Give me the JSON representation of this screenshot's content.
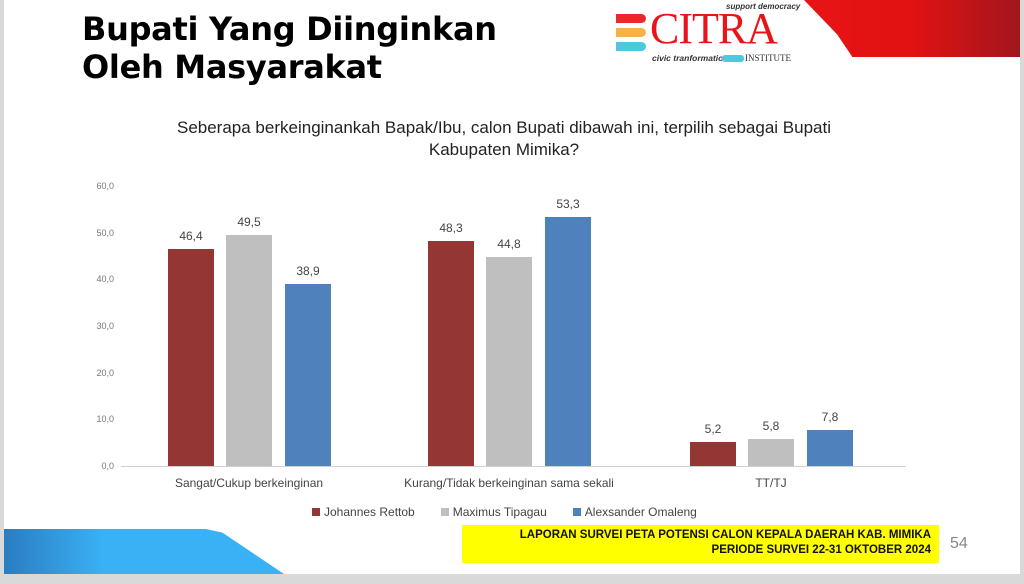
{
  "slide": {
    "title_line1": "Bupati Yang Diinginkan",
    "title_line2": "Oleh Masyarakat",
    "question": "Seberapa berkeinginankah Bapak/Ibu, calon Bupati dibawah ini, terpilih sebagai Bupati Kabupaten Mimika?",
    "footer_line1": "LAPORAN SURVEI PETA POTENSI CALON KEPALA DAERAH KAB. MIMIKA",
    "footer_line2": "PERIODE SURVEI 22-31 OKTOBER 2024",
    "page_number": "54"
  },
  "logo": {
    "word": "CITRA",
    "tagline_top": "support democracy",
    "tagline_bottom": "civic tranformation",
    "institute": "INSTITUTE"
  },
  "colors": {
    "johannes": "#943634",
    "maximus": "#bfbfbf",
    "alexsander": "#4f81bd",
    "banner_red": "#e81414",
    "footer_yellow": "#ffff00"
  },
  "chart_data": {
    "type": "bar",
    "title": "Seberapa berkeinginankah Bapak/Ibu, calon Bupati dibawah ini, terpilih sebagai Bupati Kabupaten Mimika?",
    "categories": [
      "Sangat/Cukup berkeinginan",
      "Kurang/Tidak berkeinginan sama sekali",
      "TT/TJ"
    ],
    "series": [
      {
        "name": "Johannes Rettob",
        "values": [
          46.4,
          48.3,
          5.2
        ],
        "labels": [
          "46,4",
          "48,3",
          "5,2"
        ]
      },
      {
        "name": "Maximus Tipagau",
        "values": [
          49.5,
          44.8,
          5.8
        ],
        "labels": [
          "49,5",
          "44,8",
          "5,8"
        ]
      },
      {
        "name": "Alexsander Omaleng",
        "values": [
          38.9,
          53.3,
          7.8
        ],
        "labels": [
          "38,9",
          "53,3",
          "7,8"
        ]
      }
    ],
    "yticks": [
      "0,0",
      "10,0",
      "20,0",
      "30,0",
      "40,0",
      "50,0",
      "60,0"
    ],
    "ylim": [
      0,
      60
    ],
    "xlabel": "",
    "ylabel": "",
    "grid": false,
    "legend_position": "bottom"
  }
}
